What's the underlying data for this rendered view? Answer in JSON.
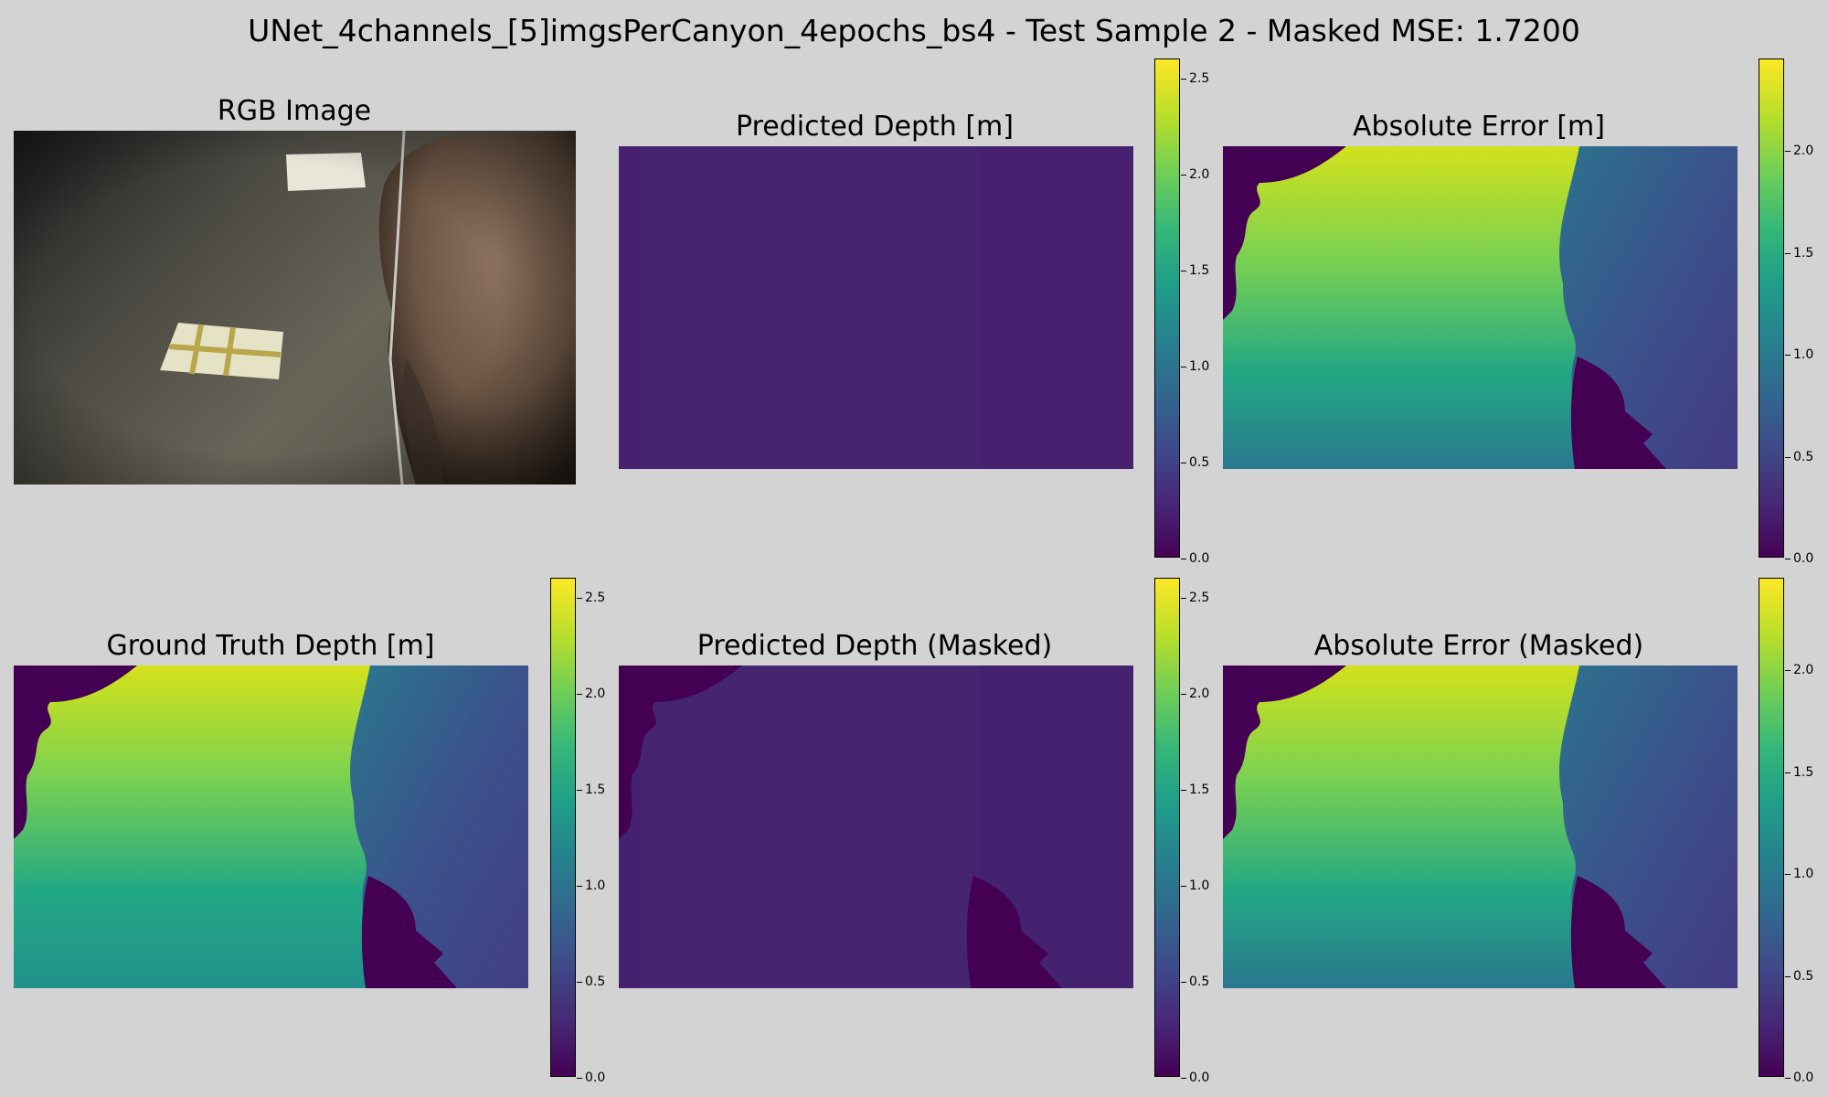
{
  "figure": {
    "suptitle": "UNet_4channels_[5]imgsPerCanyon_4epochs_bs4 - Test Sample 2 - Masked MSE: 1.7200"
  },
  "panels": {
    "rgb": {
      "title": "RGB Image"
    },
    "pred": {
      "title": "Predicted Depth [m]"
    },
    "err": {
      "title": "Absolute Error [m]"
    },
    "gt": {
      "title": "Ground Truth Depth [m]"
    },
    "pred_masked": {
      "title": "Predicted Depth (Masked)"
    },
    "err_masked": {
      "title": "Absolute Error (Masked)"
    }
  },
  "colorbars": {
    "depth_ticks": [
      "0.0",
      "0.5",
      "1.0",
      "1.5",
      "2.0",
      "2.5"
    ],
    "depth_max": 2.6,
    "error_ticks": [
      "0.0",
      "0.5",
      "1.0",
      "1.5",
      "2.0"
    ],
    "error_max": 2.45
  },
  "colors": {
    "background": "#d3d3d3",
    "colormap": "viridis",
    "viridis_low": "#440154",
    "viridis_high": "#fde725"
  }
}
